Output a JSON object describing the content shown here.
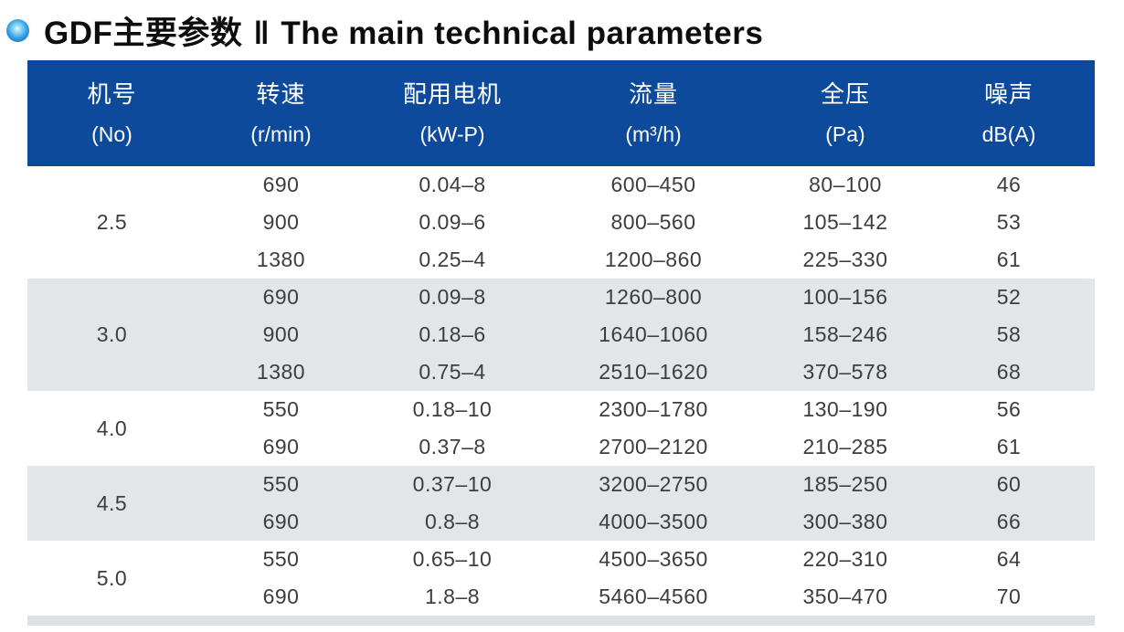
{
  "title": {
    "cn": "GDF主要参数",
    "divider": "‖",
    "en": "The main technical parameters"
  },
  "colors": {
    "header_bg": "#0d4a9b",
    "band_gray": "#e3e6e9",
    "bottom_strip": "#dde1e4",
    "bullet_blue": "#1788d8",
    "text": "#3d3d3d"
  },
  "table": {
    "columns": [
      {
        "cn": "机号",
        "sub": "(No)"
      },
      {
        "cn": "转速",
        "sub": "(r/min)"
      },
      {
        "cn": "配用电机",
        "sub": "(kW-P)"
      },
      {
        "cn": "流量",
        "sub": "(m³/h)"
      },
      {
        "cn": "全压",
        "sub": "(Pa)"
      },
      {
        "cn": "噪声",
        "sub": "dB(A)"
      }
    ],
    "groups": [
      {
        "no": "2.5",
        "rows": [
          [
            "690",
            "0.04–8",
            "600–450",
            "80–100",
            "46"
          ],
          [
            "900",
            "0.09–6",
            "800–560",
            "105–142",
            "53"
          ],
          [
            "1380",
            "0.25–4",
            "1200–860",
            "225–330",
            "61"
          ]
        ]
      },
      {
        "no": "3.0",
        "rows": [
          [
            "690",
            "0.09–8",
            "1260–800",
            "100–156",
            "52"
          ],
          [
            "900",
            "0.18–6",
            "1640–1060",
            "158–246",
            "58"
          ],
          [
            "1380",
            "0.75–4",
            "2510–1620",
            "370–578",
            "68"
          ]
        ]
      },
      {
        "no": "4.0",
        "rows": [
          [
            "550",
            "0.18–10",
            "2300–1780",
            "130–190",
            "56"
          ],
          [
            "690",
            "0.37–8",
            "2700–2120",
            "210–285",
            "61"
          ]
        ]
      },
      {
        "no": "4.5",
        "rows": [
          [
            "550",
            "0.37–10",
            "3200–2750",
            "185–250",
            "60"
          ],
          [
            "690",
            "0.8–8",
            "4000–3500",
            "300–380",
            "66"
          ]
        ]
      },
      {
        "no": "5.0",
        "rows": [
          [
            "550",
            "0.65–10",
            "4500–3650",
            "220–310",
            "64"
          ],
          [
            "690",
            "1.8–8",
            "5460–4560",
            "350–470",
            "70"
          ]
        ]
      }
    ]
  }
}
